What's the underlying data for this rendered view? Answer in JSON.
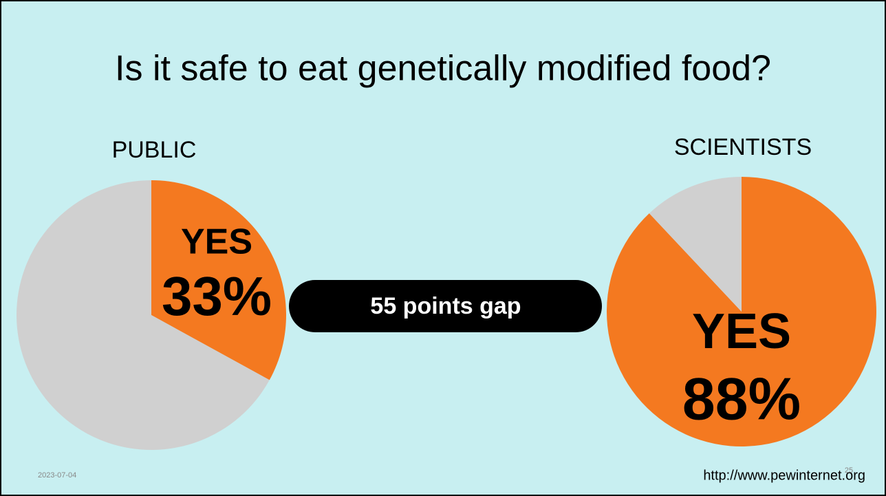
{
  "slide": {
    "title": "Is it safe to eat genetically modified food?",
    "gap_label": "55 points gap",
    "date": "2023-07-04",
    "source": "http://www.pewinternet.org",
    "page_number": "25"
  },
  "chart_data": [
    {
      "type": "pie",
      "title": "PUBLIC",
      "categories": [
        "YES",
        null
      ],
      "values": [
        33,
        67
      ],
      "value_labels": [
        "33%",
        null
      ],
      "colors": [
        "#f47920",
        "#d0d0d0"
      ]
    },
    {
      "type": "pie",
      "title": "SCIENTISTS",
      "categories": [
        "YES",
        null
      ],
      "values": [
        88,
        12
      ],
      "value_labels": [
        "88%",
        null
      ],
      "colors": [
        "#f47920",
        "#d0d0d0"
      ]
    }
  ]
}
